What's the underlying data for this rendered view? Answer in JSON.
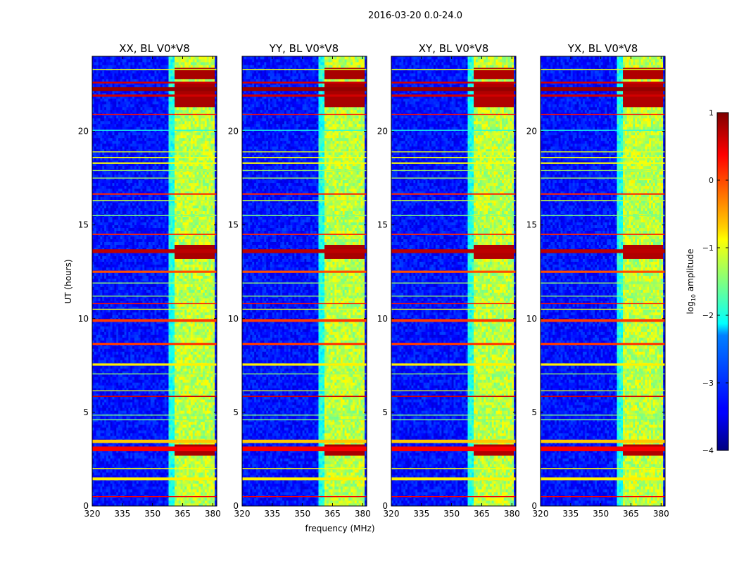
{
  "chart_data": {
    "type": "heatmap",
    "suptitle": "2016-03-20 0.0-24.0",
    "xlabel": "frequency (MHz)",
    "ylabel": "UT (hours)",
    "xlim": [
      320,
      382
    ],
    "ylim": [
      0,
      24
    ],
    "xticks": [
      320,
      335,
      350,
      365,
      380
    ],
    "yticks": [
      0,
      5,
      10,
      15,
      20
    ],
    "panels": [
      {
        "title": "XX, BL V0*V8",
        "peak_scale": 1.0
      },
      {
        "title": "YY, BL V0*V8",
        "peak_scale": 1.0
      },
      {
        "title": "XY, BL V0*V8",
        "peak_scale": 0.95
      },
      {
        "title": "YX, BL V0*V8",
        "peak_scale": 0.95
      }
    ],
    "colorbar": {
      "label_prefix": "log",
      "label_subscript": "10",
      "label_suffix": " amplitude",
      "range": [
        -4,
        1
      ],
      "ticks": [
        1,
        0,
        -1,
        -2,
        -3,
        -4
      ],
      "tick_labels": [
        "1",
        "0",
        "−1",
        "−2",
        "−3",
        "−4"
      ],
      "colormap": "jet"
    },
    "background_level": -3.3,
    "signal_band_mhz": [
      361,
      381
    ],
    "signal_subbands_mhz": [
      [
        361,
        366
      ],
      [
        366,
        371
      ],
      [
        371,
        376
      ],
      [
        376,
        381
      ]
    ],
    "signal_level": -1.2,
    "rfi_time_bands": [
      {
        "t": 0.5,
        "w": 0.05,
        "level": 0.4
      },
      {
        "t": 1.45,
        "w": 0.15,
        "level": -0.8
      },
      {
        "t": 2.0,
        "w": 0.05,
        "level": -0.9
      },
      {
        "t": 3.05,
        "w": 0.25,
        "level": 0.4
      },
      {
        "t": 3.45,
        "w": 0.18,
        "level": -0.6
      },
      {
        "t": 4.6,
        "w": 0.05,
        "level": -1.5
      },
      {
        "t": 4.85,
        "w": 0.05,
        "level": -1.5
      },
      {
        "t": 5.85,
        "w": 0.06,
        "level": 0.6
      },
      {
        "t": 6.15,
        "w": 0.05,
        "level": -1.0
      },
      {
        "t": 7.05,
        "w": 0.05,
        "level": -1.4
      },
      {
        "t": 7.55,
        "w": 0.12,
        "level": -0.8
      },
      {
        "t": 8.65,
        "w": 0.12,
        "level": 0.1
      },
      {
        "t": 9.9,
        "w": 0.15,
        "level": 0.1
      },
      {
        "t": 10.5,
        "w": 0.05,
        "level": -1.0
      },
      {
        "t": 10.8,
        "w": 0.05,
        "level": 0.3
      },
      {
        "t": 11.2,
        "w": 0.05,
        "level": -1.4
      },
      {
        "t": 11.9,
        "w": 0.05,
        "level": -1.4
      },
      {
        "t": 12.5,
        "w": 0.12,
        "level": 0.0
      },
      {
        "t": 13.6,
        "w": 0.2,
        "level": 0.7
      },
      {
        "t": 14.5,
        "w": 0.07,
        "level": 0.2
      },
      {
        "t": 15.5,
        "w": 0.05,
        "level": -1.5
      },
      {
        "t": 16.3,
        "w": 0.06,
        "level": -1.2
      },
      {
        "t": 16.65,
        "w": 0.08,
        "level": 0.2
      },
      {
        "t": 17.5,
        "w": 0.05,
        "level": -1.3
      },
      {
        "t": 17.9,
        "w": 0.05,
        "level": -1.3
      },
      {
        "t": 18.3,
        "w": 0.08,
        "level": -0.9
      },
      {
        "t": 18.6,
        "w": 0.06,
        "level": -0.9
      },
      {
        "t": 18.9,
        "w": 0.05,
        "level": -1.0
      },
      {
        "t": 20.05,
        "w": 0.05,
        "level": -2.0
      },
      {
        "t": 20.9,
        "w": 0.05,
        "level": 0.3
      },
      {
        "t": 21.9,
        "w": 0.12,
        "level": 0.6
      },
      {
        "t": 22.25,
        "w": 0.2,
        "level": 0.9
      },
      {
        "t": 22.6,
        "w": 0.1,
        "level": 0.6
      },
      {
        "t": 23.3,
        "w": 0.05,
        "level": -1.0
      }
    ],
    "bright_cell_times": [
      3.0,
      13.6,
      21.7,
      22.3,
      23.1
    ]
  }
}
